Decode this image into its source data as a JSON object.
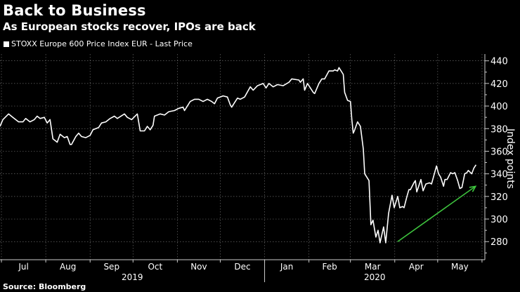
{
  "header": {
    "title": "Back to Business",
    "subtitle": "As European stocks recover, IPOs are back",
    "legend_label": "STOXX Europe 600 Price Index EUR - Last Price",
    "source": "Source: Bloomberg"
  },
  "colors": {
    "background": "#000000",
    "line": "#ffffff",
    "arrow": "#3ec43e",
    "grid": "#6a6a6a"
  },
  "chart_data": {
    "type": "line",
    "title": "Back to Business",
    "ylabel": "Index points",
    "ylim": [
      264,
      446
    ],
    "yticks": [
      280,
      300,
      320,
      340,
      360,
      380,
      400,
      420,
      440
    ],
    "x_unit": "days since 2019-07-01",
    "xlim": [
      -1,
      338
    ],
    "months": [
      {
        "label": "Jul",
        "start": 0,
        "end": 31
      },
      {
        "label": "Aug",
        "start": 31,
        "end": 62
      },
      {
        "label": "Sep",
        "start": 62,
        "end": 92
      },
      {
        "label": "Oct",
        "start": 92,
        "end": 123
      },
      {
        "label": "Nov",
        "start": 123,
        "end": 153
      },
      {
        "label": "Dec",
        "start": 153,
        "end": 184
      },
      {
        "label": "Jan",
        "start": 184,
        "end": 215
      },
      {
        "label": "Feb",
        "start": 215,
        "end": 244
      },
      {
        "label": "Mar",
        "start": 244,
        "end": 275
      },
      {
        "label": "Apr",
        "start": 275,
        "end": 305
      },
      {
        "label": "May",
        "start": 305,
        "end": 336
      }
    ],
    "years": [
      {
        "label": "2019",
        "start": -1,
        "end": 184
      },
      {
        "label": "2020",
        "start": 184,
        "end": 338
      }
    ],
    "grid": true,
    "legend_position": "top-left",
    "series": [
      {
        "name": "STOXX Europe 600 Price Index EUR - Last Price",
        "points": [
          [
            -1,
            382
          ],
          [
            1,
            388
          ],
          [
            5,
            393
          ],
          [
            8,
            390
          ],
          [
            12,
            386
          ],
          [
            15,
            386
          ],
          [
            17,
            389
          ],
          [
            20,
            386
          ],
          [
            23,
            388
          ],
          [
            25,
            391
          ],
          [
            27,
            389
          ],
          [
            30,
            390
          ],
          [
            32,
            385
          ],
          [
            34,
            388
          ],
          [
            36,
            371
          ],
          [
            39,
            368
          ],
          [
            41,
            375
          ],
          [
            44,
            372
          ],
          [
            46,
            373
          ],
          [
            48,
            366
          ],
          [
            49,
            366
          ],
          [
            52,
            373
          ],
          [
            54,
            376
          ],
          [
            56,
            373
          ],
          [
            59,
            372
          ],
          [
            62,
            374
          ],
          [
            64,
            379
          ],
          [
            68,
            381
          ],
          [
            70,
            385
          ],
          [
            73,
            386
          ],
          [
            76,
            389
          ],
          [
            79,
            391
          ],
          [
            81,
            389
          ],
          [
            86,
            393
          ],
          [
            88,
            390
          ],
          [
            91,
            388
          ],
          [
            95,
            393
          ],
          [
            97,
            378
          ],
          [
            100,
            378
          ],
          [
            102,
            382
          ],
          [
            104,
            379
          ],
          [
            106,
            383
          ],
          [
            107,
            391
          ],
          [
            111,
            393
          ],
          [
            114,
            392
          ],
          [
            117,
            395
          ],
          [
            121,
            396
          ],
          [
            124,
            398
          ],
          [
            127,
            399
          ],
          [
            128,
            396
          ],
          [
            132,
            404
          ],
          [
            135,
            406
          ],
          [
            138,
            406
          ],
          [
            141,
            404
          ],
          [
            144,
            406
          ],
          [
            147,
            404
          ],
          [
            149,
            402
          ],
          [
            151,
            407
          ],
          [
            155,
            409
          ],
          [
            158,
            408
          ],
          [
            160,
            401
          ],
          [
            161,
            399
          ],
          [
            163,
            403
          ],
          [
            165,
            407
          ],
          [
            167,
            406
          ],
          [
            170,
            408
          ],
          [
            174,
            417
          ],
          [
            176,
            414
          ],
          [
            179,
            418
          ],
          [
            183,
            420
          ],
          [
            185,
            416
          ],
          [
            187,
            420
          ],
          [
            190,
            417
          ],
          [
            193,
            419
          ],
          [
            197,
            418
          ],
          [
            201,
            421
          ],
          [
            203,
            424
          ],
          [
            208,
            423
          ],
          [
            209,
            421
          ],
          [
            211,
            424
          ],
          [
            212,
            414
          ],
          [
            214,
            420
          ],
          [
            218,
            412
          ],
          [
            219,
            411
          ],
          [
            222,
            420
          ],
          [
            224,
            424
          ],
          [
            226,
            424
          ],
          [
            229,
            431
          ],
          [
            232,
            431
          ],
          [
            233,
            432
          ],
          [
            235,
            431
          ],
          [
            236,
            434
          ],
          [
            239,
            428
          ],
          [
            240,
            412
          ],
          [
            242,
            405
          ],
          [
            244,
            404
          ],
          [
            245,
            388
          ],
          [
            246,
            376
          ],
          [
            247,
            379
          ],
          [
            249,
            386
          ],
          [
            251,
            382
          ],
          [
            253,
            362
          ],
          [
            254,
            340
          ],
          [
            257,
            334
          ],
          [
            257.8,
            310
          ],
          [
            258.3,
            295
          ],
          [
            259.8,
            299
          ],
          [
            261.8,
            284
          ],
          [
            263.3,
            290
          ],
          [
            264.7,
            279
          ],
          [
            267.2,
            293
          ],
          [
            268.7,
            279
          ],
          [
            270.7,
            305
          ],
          [
            273.1,
            321
          ],
          [
            274.6,
            310
          ],
          [
            277.1,
            320
          ],
          [
            278.5,
            310
          ],
          [
            280.5,
            311
          ],
          [
            281.5,
            310
          ],
          [
            283.5,
            320
          ],
          [
            284.9,
            326
          ],
          [
            285.9,
            326
          ],
          [
            288.4,
            332
          ],
          [
            289.4,
            334
          ],
          [
            290.4,
            324
          ],
          [
            293.3,
            335
          ],
          [
            294.8,
            325
          ],
          [
            296.8,
            331
          ],
          [
            299.3,
            332
          ],
          [
            300.7,
            331
          ],
          [
            304.2,
            347
          ],
          [
            305.6,
            340
          ],
          [
            307.1,
            337
          ],
          [
            309.1,
            329
          ],
          [
            310.1,
            335
          ],
          [
            311.6,
            335
          ],
          [
            314,
            341
          ],
          [
            315.5,
            340
          ],
          [
            317,
            341
          ],
          [
            319,
            334
          ],
          [
            320.5,
            327
          ],
          [
            322,
            328
          ],
          [
            323.9,
            340
          ],
          [
            325.4,
            341
          ],
          [
            326.4,
            343
          ],
          [
            328.8,
            340
          ],
          [
            330.3,
            345
          ],
          [
            331.8,
            348
          ]
        ]
      }
    ],
    "annotations": [
      {
        "type": "arrow",
        "from": [
          277,
          280
        ],
        "to": [
          331.5,
          329
        ],
        "color": "#3ec43e"
      }
    ]
  }
}
